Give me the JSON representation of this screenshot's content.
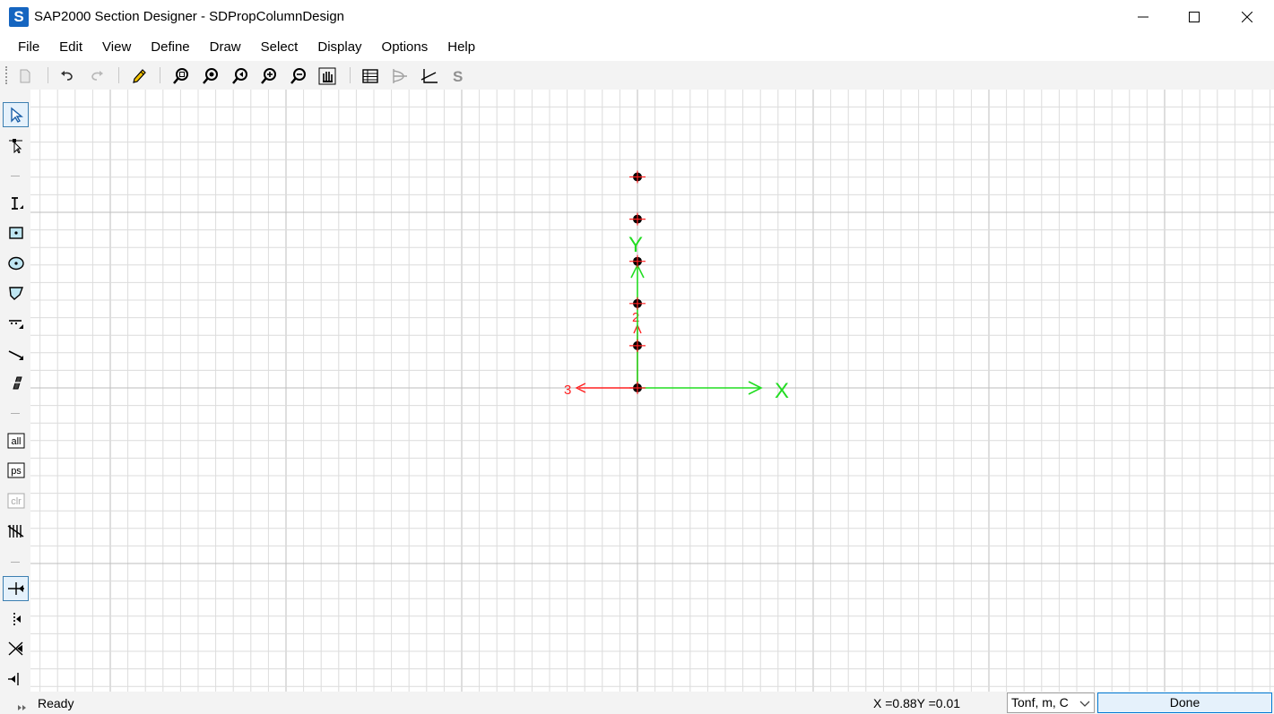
{
  "window": {
    "app_icon_letter": "S",
    "title": "SAP2000 Section Designer - SDPropColumnDesign",
    "controls": [
      "minimize",
      "maximize",
      "close"
    ]
  },
  "menu": {
    "items": [
      "File",
      "Edit",
      "View",
      "Define",
      "Draw",
      "Select",
      "Display",
      "Options",
      "Help"
    ]
  },
  "toolbar": {
    "icons": [
      "new-icon",
      "undo-icon",
      "redo-icon",
      "pencil-icon",
      "zoom-window-icon",
      "restore-full-view-icon",
      "previous-zoom-icon",
      "zoom-in-icon",
      "zoom-out-icon",
      "pan-icon",
      "show-tables-icon",
      "interaction-surface-icon",
      "moment-curvature-icon",
      "show-section-properties-icon"
    ]
  },
  "left_toolbar": {
    "icons": [
      "pointer-icon",
      "reshaper-icon",
      "draw-i-section-icon",
      "draw-rectangle-icon",
      "draw-circle-icon",
      "draw-polygon-icon",
      "draw-reinforcing-shape-icon",
      "draw-line-bar-icon",
      "draw-caliper-icon",
      "select-all-icon",
      "get-previous-selection-icon",
      "clear-selection-icon",
      "select-intersecting-line-icon",
      "snap-to-points-icon",
      "snap-to-line-ends-icon",
      "snap-to-intersections-icon",
      "snap-to-perpendicular-icon"
    ],
    "select_labels": [
      "all",
      "ps",
      "clr"
    ]
  },
  "canvas": {
    "axis_labels": {
      "x": "X",
      "y": "Y",
      "local_2": "2",
      "local_3": "3"
    },
    "colors": {
      "global_axes": "#22dd22",
      "local_axes": "#ff2020",
      "points": "#000000",
      "grid_minor": "#dcdcdc",
      "grid_major": "#bdbdbd"
    },
    "point_count": 6
  },
  "status": {
    "text": "Ready",
    "coordinates": "X =0.88Y =0.01",
    "units": "Tonf, m, C",
    "done_label": "Done"
  }
}
